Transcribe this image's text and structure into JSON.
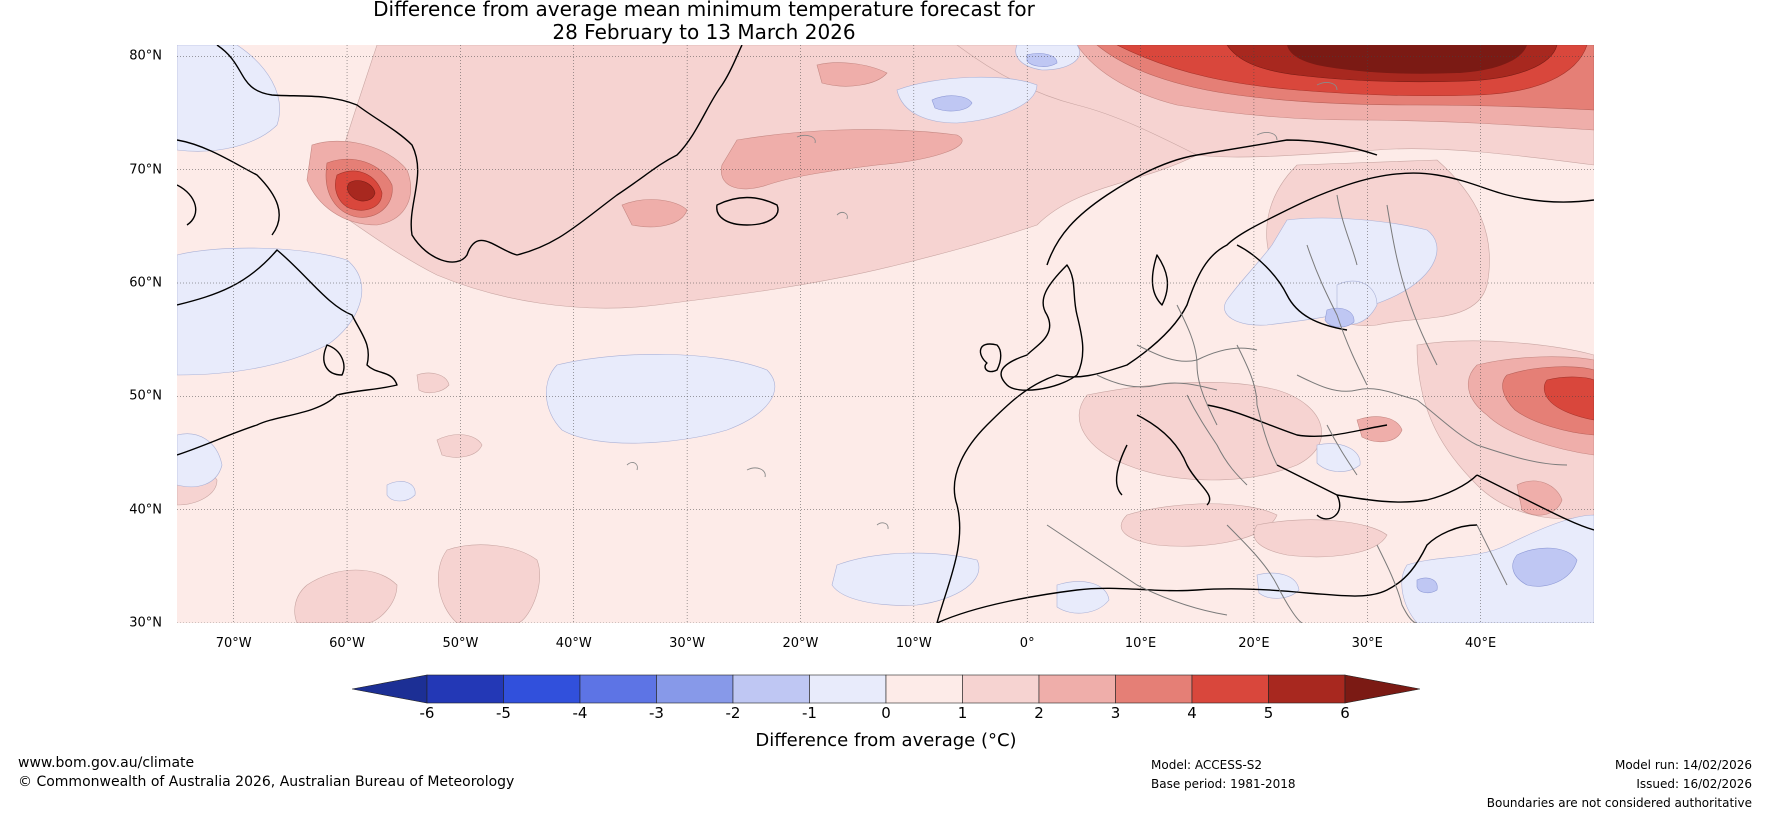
{
  "title": {
    "line1": "Difference from average mean minimum temperature forecast for",
    "line2": "28 February to 13 March 2026"
  },
  "map": {
    "region": "North Atlantic and Europe",
    "lat_labels": [
      "80°N",
      "70°N",
      "60°N",
      "50°N",
      "40°N",
      "30°N"
    ],
    "lat_values": [
      80,
      70,
      60,
      50,
      40,
      30
    ],
    "lon_labels": [
      "70°W",
      "60°W",
      "50°W",
      "40°W",
      "30°W",
      "20°W",
      "10°W",
      "0°",
      "10°E",
      "20°E",
      "30°E",
      "40°E"
    ],
    "lon_values": [
      -70,
      -60,
      -50,
      -40,
      -30,
      -20,
      -10,
      0,
      10,
      20,
      30,
      40
    ],
    "extent": {
      "lon_min": -75,
      "lon_max": 50,
      "lat_min": 30,
      "lat_max": 81
    }
  },
  "colorbar": {
    "ticks": [
      "-6",
      "-5",
      "-4",
      "-3",
      "-2",
      "-1",
      "0",
      "1",
      "2",
      "3",
      "4",
      "5",
      "6"
    ],
    "colors": [
      "#1c2f95",
      "#2338b6",
      "#3150dc",
      "#5d74e5",
      "#8799e9",
      "#bfc7f3",
      "#e8ebfb",
      "#fdebe8",
      "#f6d3d1",
      "#efaeaa",
      "#e57f76",
      "#d9473c",
      "#a8281f",
      "#7b1a14"
    ],
    "label": "Difference from average (°C)"
  },
  "footer": {
    "website": "www.bom.gov.au/climate",
    "copyright": "© Commonwealth of Australia 2026, Australian Bureau of Meteorology",
    "model": "Model: ACCESS-S2",
    "base_period": "Base period: 1981-2018",
    "model_run": "Model run: 14/02/2026",
    "issued": "Issued: 16/02/2026",
    "disclaimer": "Boundaries are not considered authoritative"
  }
}
